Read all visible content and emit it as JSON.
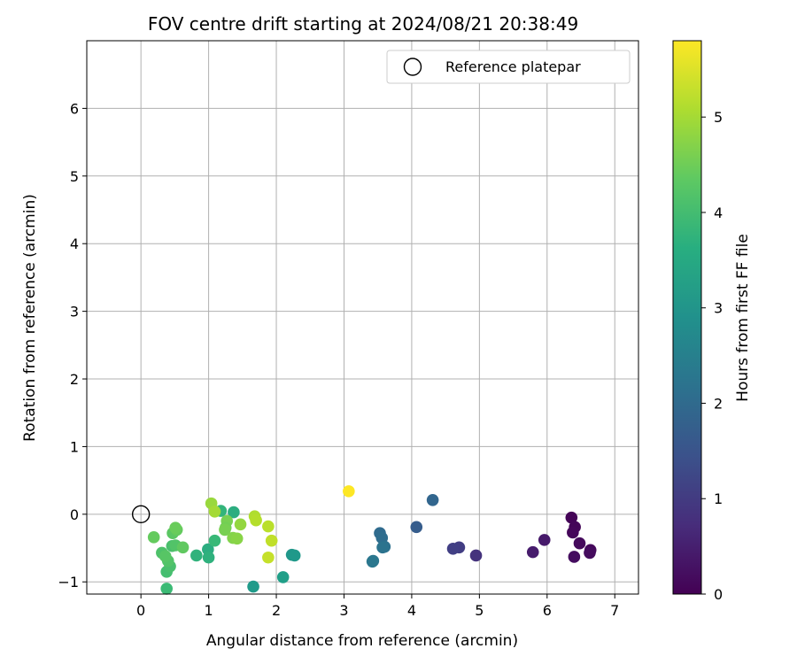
{
  "chart_data": {
    "type": "scatter",
    "title": "FOV centre drift starting at 2024/08/21 20:38:49",
    "xlabel": "Angular distance from reference (arcmin)",
    "ylabel": "Rotation from reference (arcmin)",
    "xlim": [
      -0.8,
      7.35
    ],
    "ylim": [
      -1.18,
      7.0
    ],
    "xticks": [
      0,
      1,
      2,
      3,
      4,
      5,
      6,
      7
    ],
    "yticks": [
      -1,
      0,
      1,
      2,
      3,
      4,
      5,
      6
    ],
    "grid": true,
    "legend": {
      "placement": "top-right",
      "entries": [
        "Reference platepar"
      ]
    },
    "reference_point": {
      "x": 0,
      "y": 0,
      "label": "Reference platepar"
    },
    "colorbar": {
      "label": "Hours from first FF file",
      "min": 0,
      "max": 5.8,
      "ticks": [
        0,
        1,
        2,
        3,
        4,
        5
      ],
      "colormap": "viridis"
    },
    "points": [
      {
        "x": 6.36,
        "y": -0.05,
        "hours": 0.05
      },
      {
        "x": 6.41,
        "y": -0.19,
        "hours": 0.08
      },
      {
        "x": 6.38,
        "y": -0.27,
        "hours": 0.1
      },
      {
        "x": 6.48,
        "y": -0.43,
        "hours": 0.15
      },
      {
        "x": 6.64,
        "y": -0.53,
        "hours": 0.12
      },
      {
        "x": 6.63,
        "y": -0.57,
        "hours": 0.18
      },
      {
        "x": 6.4,
        "y": -0.63,
        "hours": 0.2
      },
      {
        "x": 5.96,
        "y": -0.38,
        "hours": 0.4
      },
      {
        "x": 5.79,
        "y": -0.56,
        "hours": 0.45
      },
      {
        "x": 4.95,
        "y": -0.61,
        "hours": 0.85
      },
      {
        "x": 4.7,
        "y": -0.49,
        "hours": 1.05
      },
      {
        "x": 4.61,
        "y": -0.51,
        "hours": 1.1
      },
      {
        "x": 4.07,
        "y": -0.19,
        "hours": 1.7
      },
      {
        "x": 4.31,
        "y": 0.21,
        "hours": 1.9
      },
      {
        "x": 3.53,
        "y": -0.28,
        "hours": 2.0
      },
      {
        "x": 3.56,
        "y": -0.35,
        "hours": 2.05
      },
      {
        "x": 3.6,
        "y": -0.48,
        "hours": 2.15
      },
      {
        "x": 3.57,
        "y": -0.49,
        "hours": 2.2
      },
      {
        "x": 3.43,
        "y": -0.69,
        "hours": 2.25
      },
      {
        "x": 3.42,
        "y": -0.7,
        "hours": 2.3
      },
      {
        "x": 2.23,
        "y": -0.6,
        "hours": 3.05
      },
      {
        "x": 2.27,
        "y": -0.61,
        "hours": 3.1
      },
      {
        "x": 2.1,
        "y": -0.93,
        "hours": 3.25
      },
      {
        "x": 1.66,
        "y": -1.07,
        "hours": 3.15
      },
      {
        "x": 1.37,
        "y": 0.03,
        "hours": 3.6
      },
      {
        "x": 1.18,
        "y": 0.05,
        "hours": 3.8
      },
      {
        "x": 0.99,
        "y": -0.52,
        "hours": 3.6
      },
      {
        "x": 1.0,
        "y": -0.64,
        "hours": 3.7
      },
      {
        "x": 0.82,
        "y": -0.61,
        "hours": 3.75
      },
      {
        "x": 1.09,
        "y": -0.39,
        "hours": 3.9
      },
      {
        "x": 0.38,
        "y": -1.1,
        "hours": 3.95
      },
      {
        "x": 0.38,
        "y": -0.85,
        "hours": 4.05
      },
      {
        "x": 0.43,
        "y": -0.77,
        "hours": 4.1
      },
      {
        "x": 0.4,
        "y": -0.69,
        "hours": 4.2
      },
      {
        "x": 0.31,
        "y": -0.57,
        "hours": 4.15
      },
      {
        "x": 0.36,
        "y": -0.62,
        "hours": 4.25
      },
      {
        "x": 0.46,
        "y": -0.47,
        "hours": 4.1
      },
      {
        "x": 0.51,
        "y": -0.46,
        "hours": 4.2
      },
      {
        "x": 0.62,
        "y": -0.49,
        "hours": 4.35
      },
      {
        "x": 0.47,
        "y": -0.28,
        "hours": 4.3
      },
      {
        "x": 0.53,
        "y": -0.23,
        "hours": 4.4
      },
      {
        "x": 0.51,
        "y": -0.2,
        "hours": 4.45
      },
      {
        "x": 0.19,
        "y": -0.34,
        "hours": 4.4
      },
      {
        "x": 1.27,
        "y": -0.1,
        "hours": 4.6
      },
      {
        "x": 1.25,
        "y": -0.2,
        "hours": 4.55
      },
      {
        "x": 1.24,
        "y": -0.23,
        "hours": 4.6
      },
      {
        "x": 1.36,
        "y": -0.35,
        "hours": 4.7
      },
      {
        "x": 1.42,
        "y": -0.36,
        "hours": 4.75
      },
      {
        "x": 1.47,
        "y": -0.15,
        "hours": 4.85
      },
      {
        "x": 1.04,
        "y": 0.16,
        "hours": 4.9
      },
      {
        "x": 1.09,
        "y": 0.04,
        "hours": 5.0
      },
      {
        "x": 1.68,
        "y": -0.03,
        "hours": 5.1
      },
      {
        "x": 1.7,
        "y": -0.09,
        "hours": 5.15
      },
      {
        "x": 1.88,
        "y": -0.18,
        "hours": 5.2
      },
      {
        "x": 1.93,
        "y": -0.39,
        "hours": 5.25
      },
      {
        "x": 1.88,
        "y": -0.64,
        "hours": 5.3
      },
      {
        "x": 3.07,
        "y": 0.34,
        "hours": 5.8
      }
    ]
  }
}
